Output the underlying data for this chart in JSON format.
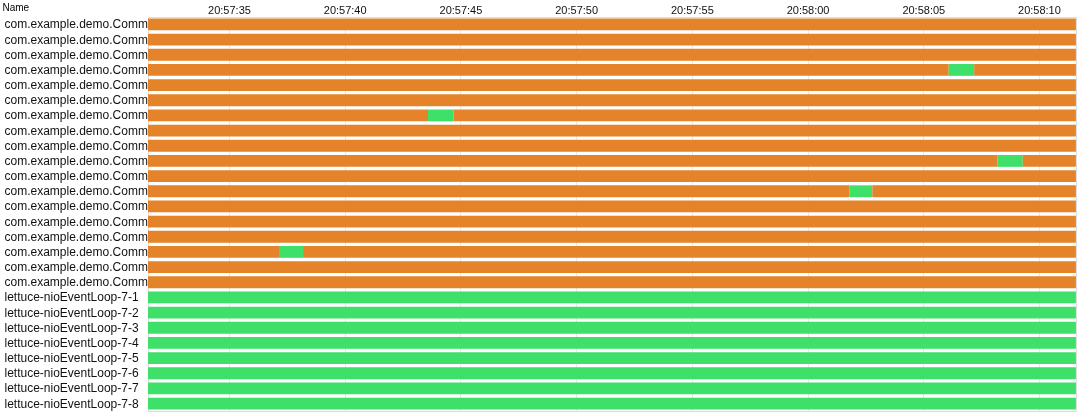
{
  "chart_data": {
    "type": "bar",
    "orientation": "horizontal",
    "ylabel": "Name",
    "categories": [
      "com.example.demo.Comm",
      "com.example.demo.Comm",
      "com.example.demo.Comm",
      "com.example.demo.Comm",
      "com.example.demo.Comm",
      "com.example.demo.Comm",
      "com.example.demo.Comm",
      "com.example.demo.Comm",
      "com.example.demo.Comm",
      "com.example.demo.Comm",
      "com.example.demo.Comm",
      "com.example.demo.Comm",
      "com.example.demo.Comm",
      "com.example.demo.Comm",
      "com.example.demo.Comm",
      "com.example.demo.Comm",
      "com.example.demo.Comm",
      "com.example.demo.Comm",
      "lettuce-nioEventLoop-7-1",
      "lettuce-nioEventLoop-7-2",
      "lettuce-nioEventLoop-7-3",
      "lettuce-nioEventLoop-7-4",
      "lettuce-nioEventLoop-7-5",
      "lettuce-nioEventLoop-7-6",
      "lettuce-nioEventLoop-7-7",
      "lettuce-nioEventLoop-7-8"
    ],
    "series": [
      {
        "color": "#e5832a",
        "base": [
          20.95875,
          20.95875,
          20.95875,
          20.95875,
          20.95875,
          20.95875,
          20.95875,
          20.95875,
          20.95875,
          20.95875,
          20.95875,
          20.95875,
          20.95875,
          20.95875,
          20.95875,
          20.95875,
          20.95875,
          20.95875,
          null,
          null,
          null,
          null,
          null,
          null,
          null,
          null
        ],
        "values": [
          0.011138,
          0.011138,
          0.011138,
          0.009611,
          0.011138,
          0.011138,
          0.003361,
          0.011138,
          0.011138,
          0.010194,
          0.011138,
          0.008417,
          0.011138,
          0.011138,
          0.011138,
          0.001583,
          0.011138,
          0.011138,
          null,
          null,
          null,
          null,
          null,
          null,
          null,
          null
        ]
      },
      {
        "color": "#3ee06a",
        "base": [
          null,
          null,
          null,
          20.968361,
          null,
          null,
          20.962111,
          null,
          null,
          20.968944,
          null,
          20.967167,
          null,
          null,
          null,
          20.960333,
          null,
          null,
          20.95875,
          20.95875,
          20.95875,
          20.95875,
          20.95875,
          20.95875,
          20.95875,
          20.95875
        ],
        "values": [
          null,
          null,
          null,
          0.000306,
          null,
          null,
          0.000306,
          null,
          null,
          0.000306,
          null,
          0.000277,
          null,
          null,
          null,
          0.000278,
          null,
          null,
          0.011138,
          0.011138,
          0.011138,
          0.011138,
          0.011138,
          0.011138,
          0.011138,
          0.011138
        ]
      },
      {
        "color": "#e5832a",
        "base": [
          null,
          null,
          null,
          20.968667,
          null,
          null,
          20.962417,
          null,
          null,
          20.96925,
          null,
          20.967444,
          null,
          null,
          null,
          20.960611,
          null,
          null,
          null,
          null,
          null,
          null,
          null,
          null,
          null,
          null
        ],
        "values": [
          null,
          null,
          null,
          0.001221,
          null,
          null,
          0.007471,
          null,
          null,
          0.000638,
          null,
          0.002444,
          null,
          null,
          null,
          0.009277,
          null,
          null,
          null,
          null,
          null,
          null,
          null,
          null,
          null,
          null
        ]
      }
    ],
    "xlim": [
      20.95875,
      20.969889
    ],
    "xticks": [
      {
        "value": 20.959722,
        "label": "20:57:35"
      },
      {
        "value": 20.961111,
        "label": "20:57:40"
      },
      {
        "value": 20.9625,
        "label": "20:57:45"
      },
      {
        "value": 20.963889,
        "label": "20:57:50"
      },
      {
        "value": 20.965278,
        "label": "20:57:55"
      },
      {
        "value": 20.966667,
        "label": "20:58:00"
      },
      {
        "value": 20.968056,
        "label": "20:58:05"
      },
      {
        "value": 20.969444,
        "label": "20:58:10"
      }
    ],
    "grid": "x"
  }
}
